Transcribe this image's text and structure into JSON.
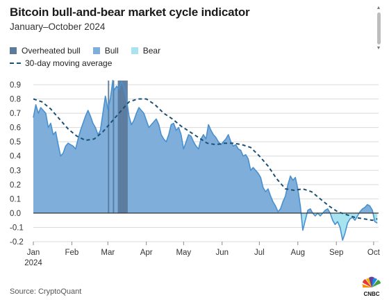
{
  "header": {
    "title": "Bitcoin bull-and-bear market cycle indicator",
    "subtitle": "January–October 2024"
  },
  "legend": {
    "items": [
      {
        "label": "Overheated bull",
        "color": "#5b7a9c"
      },
      {
        "label": "Bull",
        "color": "#7eaed9"
      },
      {
        "label": "Bear",
        "color": "#a8e4f0"
      }
    ],
    "moving_average_label": "30-day moving average"
  },
  "footer": {
    "source": "Source: CryptoQuant",
    "logo_text": "CNBC",
    "logo_icon": "peacock-icon"
  },
  "colors": {
    "bull_fill": "#7eaed9",
    "bull_line": "#4a90cf",
    "bear_fill": "#a8e4f0",
    "overheated_fill": "#5b7a9c",
    "moving_average": "#1d4f72",
    "zero_line": "#333333",
    "grid": "#d9d9d9"
  },
  "chart_data": {
    "type": "area",
    "xlabel": "",
    "ylabel": "",
    "ylim": [
      -0.2,
      0.9
    ],
    "yticks": [
      -0.2,
      -0.1,
      0.0,
      0.1,
      0.2,
      0.3,
      0.4,
      0.5,
      0.6,
      0.7,
      0.8,
      0.9
    ],
    "ytick_labels": [
      "-0.2",
      "-0.1",
      "0.0",
      "0.1",
      "0.2",
      "0.3",
      "0.4",
      "0.5",
      "0.6",
      "0.7",
      "0.8",
      "0.9"
    ],
    "grid": "horizontal",
    "xlim": [
      "2024-01-01",
      "2024-10-05"
    ],
    "xticks": [
      {
        "date": "2024-01-01",
        "label": "Jan",
        "sublabel": "2024"
      },
      {
        "date": "2024-02-01",
        "label": "Feb"
      },
      {
        "date": "2024-03-01",
        "label": "Mar"
      },
      {
        "date": "2024-04-01",
        "label": "Apr"
      },
      {
        "date": "2024-05-01",
        "label": "May"
      },
      {
        "date": "2024-06-01",
        "label": "Jun"
      },
      {
        "date": "2024-07-01",
        "label": "Jul"
      },
      {
        "date": "2024-08-01",
        "label": "Aug"
      },
      {
        "date": "2024-09-01",
        "label": "Sep"
      },
      {
        "date": "2024-10-01",
        "label": "Oct"
      }
    ],
    "overheated_periods": [
      [
        "2024-03-01",
        "2024-03-02"
      ],
      [
        "2024-03-05",
        "2024-03-06"
      ],
      [
        "2024-03-09",
        "2024-03-17"
      ]
    ],
    "series": [
      {
        "name": "Bull-and-bear indicator",
        "points": [
          [
            "2024-01-01",
            0.67
          ],
          [
            "2024-01-03",
            0.76
          ],
          [
            "2024-01-05",
            0.7
          ],
          [
            "2024-01-07",
            0.74
          ],
          [
            "2024-01-09",
            0.72
          ],
          [
            "2024-01-11",
            0.7
          ],
          [
            "2024-01-13",
            0.6
          ],
          [
            "2024-01-15",
            0.63
          ],
          [
            "2024-01-17",
            0.55
          ],
          [
            "2024-01-19",
            0.57
          ],
          [
            "2024-01-21",
            0.48
          ],
          [
            "2024-01-23",
            0.4
          ],
          [
            "2024-01-25",
            0.42
          ],
          [
            "2024-01-27",
            0.47
          ],
          [
            "2024-01-29",
            0.49
          ],
          [
            "2024-01-31",
            0.48
          ],
          [
            "2024-02-02",
            0.47
          ],
          [
            "2024-02-04",
            0.45
          ],
          [
            "2024-02-06",
            0.52
          ],
          [
            "2024-02-08",
            0.58
          ],
          [
            "2024-02-10",
            0.63
          ],
          [
            "2024-02-12",
            0.68
          ],
          [
            "2024-02-14",
            0.72
          ],
          [
            "2024-02-16",
            0.68
          ],
          [
            "2024-02-18",
            0.63
          ],
          [
            "2024-02-20",
            0.6
          ],
          [
            "2024-02-22",
            0.55
          ],
          [
            "2024-02-24",
            0.58
          ],
          [
            "2024-02-26",
            0.7
          ],
          [
            "2024-02-28",
            0.82
          ],
          [
            "2024-03-01",
            0.73
          ],
          [
            "2024-03-03",
            0.8
          ],
          [
            "2024-03-05",
            0.93
          ],
          [
            "2024-03-06",
            0.86
          ],
          [
            "2024-03-08",
            0.89
          ],
          [
            "2024-03-10",
            0.87
          ],
          [
            "2024-03-12",
            0.92
          ],
          [
            "2024-03-14",
            0.88
          ],
          [
            "2024-03-16",
            0.8
          ],
          [
            "2024-03-18",
            0.68
          ],
          [
            "2024-03-20",
            0.62
          ],
          [
            "2024-03-22",
            0.65
          ],
          [
            "2024-03-24",
            0.7
          ],
          [
            "2024-03-26",
            0.74
          ],
          [
            "2024-03-28",
            0.72
          ],
          [
            "2024-03-30",
            0.7
          ],
          [
            "2024-04-01",
            0.65
          ],
          [
            "2024-04-03",
            0.6
          ],
          [
            "2024-04-05",
            0.62
          ],
          [
            "2024-04-07",
            0.64
          ],
          [
            "2024-04-09",
            0.66
          ],
          [
            "2024-04-11",
            0.62
          ],
          [
            "2024-04-13",
            0.55
          ],
          [
            "2024-04-15",
            0.52
          ],
          [
            "2024-04-17",
            0.5
          ],
          [
            "2024-04-19",
            0.55
          ],
          [
            "2024-04-21",
            0.62
          ],
          [
            "2024-04-23",
            0.63
          ],
          [
            "2024-04-25",
            0.58
          ],
          [
            "2024-04-27",
            0.6
          ],
          [
            "2024-04-29",
            0.55
          ],
          [
            "2024-05-01",
            0.45
          ],
          [
            "2024-05-03",
            0.5
          ],
          [
            "2024-05-05",
            0.55
          ],
          [
            "2024-05-07",
            0.54
          ],
          [
            "2024-05-09",
            0.5
          ],
          [
            "2024-05-11",
            0.47
          ],
          [
            "2024-05-13",
            0.45
          ],
          [
            "2024-05-15",
            0.52
          ],
          [
            "2024-05-17",
            0.55
          ],
          [
            "2024-05-19",
            0.52
          ],
          [
            "2024-05-21",
            0.62
          ],
          [
            "2024-05-23",
            0.58
          ],
          [
            "2024-05-25",
            0.55
          ],
          [
            "2024-05-27",
            0.53
          ],
          [
            "2024-05-29",
            0.5
          ],
          [
            "2024-05-31",
            0.48
          ],
          [
            "2024-06-02",
            0.5
          ],
          [
            "2024-06-04",
            0.52
          ],
          [
            "2024-06-06",
            0.55
          ],
          [
            "2024-06-08",
            0.5
          ],
          [
            "2024-06-10",
            0.47
          ],
          [
            "2024-06-12",
            0.48
          ],
          [
            "2024-06-14",
            0.45
          ],
          [
            "2024-06-16",
            0.44
          ],
          [
            "2024-06-18",
            0.4
          ],
          [
            "2024-06-20",
            0.41
          ],
          [
            "2024-06-22",
            0.38
          ],
          [
            "2024-06-24",
            0.3
          ],
          [
            "2024-06-26",
            0.32
          ],
          [
            "2024-06-28",
            0.3
          ],
          [
            "2024-06-30",
            0.28
          ],
          [
            "2024-07-02",
            0.25
          ],
          [
            "2024-07-04",
            0.18
          ],
          [
            "2024-07-06",
            0.15
          ],
          [
            "2024-07-08",
            0.17
          ],
          [
            "2024-07-10",
            0.12
          ],
          [
            "2024-07-12",
            0.08
          ],
          [
            "2024-07-14",
            0.05
          ],
          [
            "2024-07-16",
            0.01
          ],
          [
            "2024-07-18",
            0.03
          ],
          [
            "2024-07-20",
            0.08
          ],
          [
            "2024-07-22",
            0.12
          ],
          [
            "2024-07-24",
            0.2
          ],
          [
            "2024-07-26",
            0.26
          ],
          [
            "2024-07-28",
            0.23
          ],
          [
            "2024-07-30",
            0.25
          ],
          [
            "2024-08-01",
            0.17
          ],
          [
            "2024-08-03",
            0.05
          ],
          [
            "2024-08-05",
            -0.12
          ],
          [
            "2024-08-07",
            -0.05
          ],
          [
            "2024-08-09",
            0.02
          ],
          [
            "2024-08-11",
            0.03
          ],
          [
            "2024-08-13",
            0.0
          ],
          [
            "2024-08-15",
            -0.02
          ],
          [
            "2024-08-17",
            0.0
          ],
          [
            "2024-08-19",
            -0.02
          ],
          [
            "2024-08-21",
            0.0
          ],
          [
            "2024-08-23",
            0.02
          ],
          [
            "2024-08-25",
            0.03
          ],
          [
            "2024-08-27",
            0.0
          ],
          [
            "2024-08-29",
            -0.05
          ],
          [
            "2024-08-31",
            -0.08
          ],
          [
            "2024-09-02",
            -0.06
          ],
          [
            "2024-09-04",
            -0.1
          ],
          [
            "2024-09-06",
            -0.19
          ],
          [
            "2024-09-08",
            -0.14
          ],
          [
            "2024-09-10",
            -0.07
          ],
          [
            "2024-09-12",
            -0.04
          ],
          [
            "2024-09-14",
            -0.03
          ],
          [
            "2024-09-16",
            -0.05
          ],
          [
            "2024-09-18",
            -0.02
          ],
          [
            "2024-09-20",
            0.01
          ],
          [
            "2024-09-22",
            0.03
          ],
          [
            "2024-09-24",
            0.04
          ],
          [
            "2024-09-26",
            0.06
          ],
          [
            "2024-09-28",
            0.05
          ],
          [
            "2024-09-30",
            0.02
          ],
          [
            "2024-10-02",
            -0.06
          ],
          [
            "2024-10-04",
            -0.07
          ]
        ]
      },
      {
        "name": "30-day moving average",
        "points": [
          [
            "2024-01-01",
            0.8
          ],
          [
            "2024-01-08",
            0.78
          ],
          [
            "2024-01-15",
            0.73
          ],
          [
            "2024-01-22",
            0.66
          ],
          [
            "2024-01-29",
            0.59
          ],
          [
            "2024-02-05",
            0.54
          ],
          [
            "2024-02-12",
            0.51
          ],
          [
            "2024-02-19",
            0.52
          ],
          [
            "2024-02-26",
            0.57
          ],
          [
            "2024-03-04",
            0.64
          ],
          [
            "2024-03-11",
            0.71
          ],
          [
            "2024-03-18",
            0.78
          ],
          [
            "2024-03-25",
            0.8
          ],
          [
            "2024-04-01",
            0.8
          ],
          [
            "2024-04-08",
            0.76
          ],
          [
            "2024-04-15",
            0.7
          ],
          [
            "2024-04-22",
            0.66
          ],
          [
            "2024-04-29",
            0.61
          ],
          [
            "2024-05-06",
            0.57
          ],
          [
            "2024-05-13",
            0.53
          ],
          [
            "2024-05-20",
            0.49
          ],
          [
            "2024-05-27",
            0.48
          ],
          [
            "2024-06-03",
            0.49
          ],
          [
            "2024-06-10",
            0.49
          ],
          [
            "2024-06-17",
            0.48
          ],
          [
            "2024-06-24",
            0.46
          ],
          [
            "2024-07-01",
            0.4
          ],
          [
            "2024-07-08",
            0.33
          ],
          [
            "2024-07-15",
            0.24
          ],
          [
            "2024-07-22",
            0.17
          ],
          [
            "2024-07-29",
            0.16
          ],
          [
            "2024-08-05",
            0.17
          ],
          [
            "2024-08-12",
            0.15
          ],
          [
            "2024-08-19",
            0.1
          ],
          [
            "2024-08-26",
            0.05
          ],
          [
            "2024-09-02",
            0.01
          ],
          [
            "2024-09-09",
            -0.01
          ],
          [
            "2024-09-16",
            -0.03
          ],
          [
            "2024-09-23",
            -0.04
          ],
          [
            "2024-09-30",
            -0.05
          ],
          [
            "2024-10-04",
            -0.04
          ]
        ]
      }
    ]
  }
}
